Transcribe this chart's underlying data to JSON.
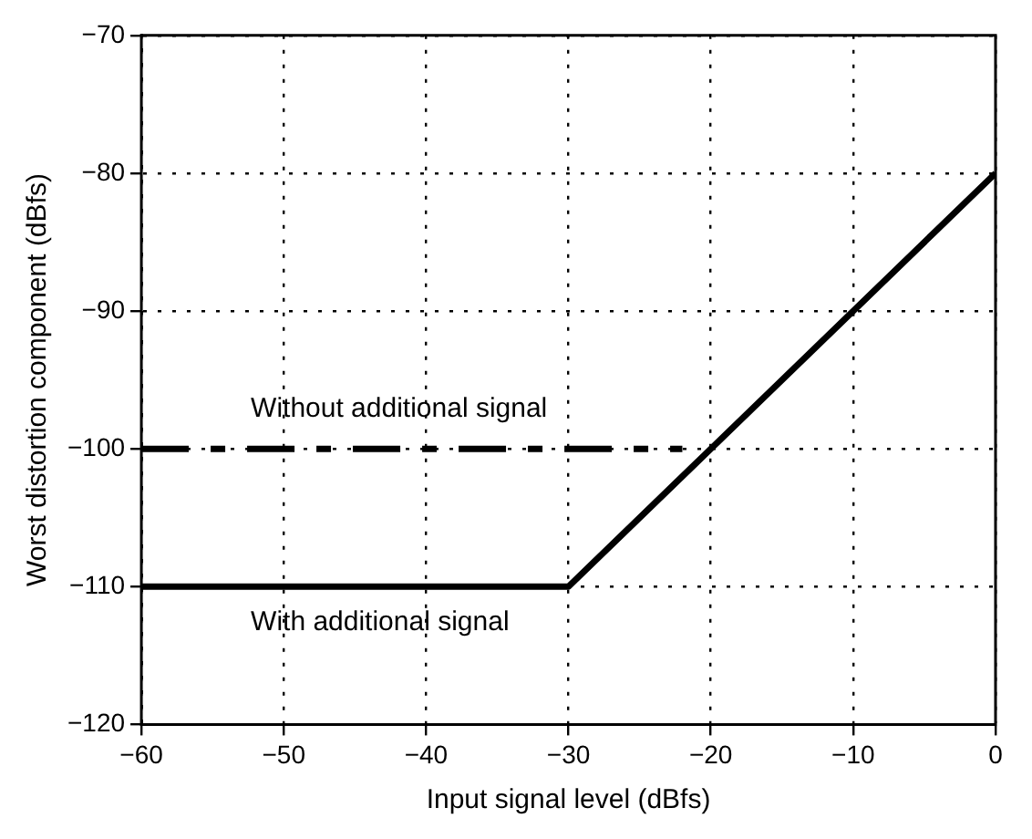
{
  "chart_data": {
    "type": "line",
    "xlabel": "Input signal level (dBfs)",
    "ylabel": "Worst distortion component (dBfs)",
    "xlim": [
      -60,
      0
    ],
    "xticks": [
      -60,
      -50,
      -40,
      -30,
      -20,
      -10,
      0
    ],
    "ylim": [
      -120,
      -70
    ],
    "yticks": [
      -120,
      -110,
      -100,
      -90,
      -80,
      -70
    ],
    "grid": true,
    "legend": false,
    "marker": "none",
    "series": [
      {
        "name": "With additional signal",
        "color": "#000000",
        "line_style": "solid",
        "x": [
          -60,
          -30,
          0
        ],
        "values": [
          -110,
          -110,
          -80
        ]
      },
      {
        "name": "Without additional signal",
        "color": "#000000",
        "line_style": "dashed",
        "x": [
          -60,
          -22
        ],
        "values": [
          -100,
          -100
        ]
      }
    ]
  }
}
